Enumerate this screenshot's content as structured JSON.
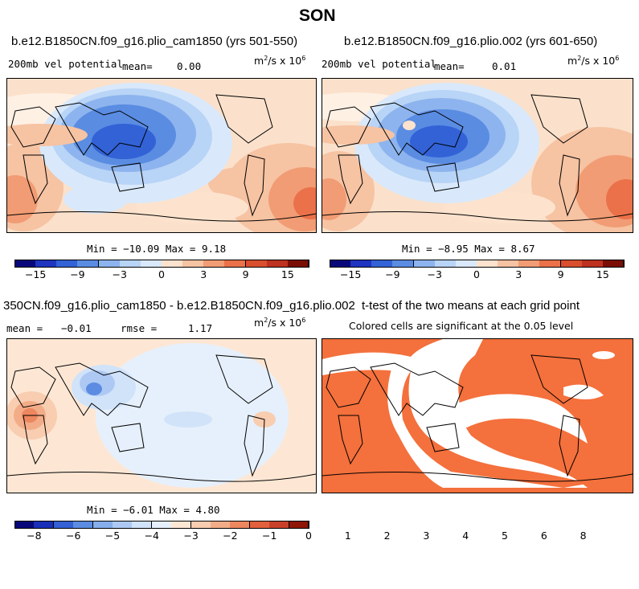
{
  "figure_title": "SON",
  "chart_data": [
    {
      "type": "heatmap",
      "panel": "top-left",
      "title": "b.e12.B1850CN.f09_g16.plio_cam1850 (yrs 501-550)",
      "variable": "200mb vel potential",
      "mean_label": "mean=",
      "mean_value": "0.00",
      "units": "m",
      "units_sup": "2",
      "units_rest": "/s x 10",
      "units_exp": "6",
      "min_max_text": "Min = −10.09 Max =   9.18",
      "colorbar_ticks": [
        "−15",
        "−9",
        "−3",
        "0",
        "3",
        "9",
        "15"
      ]
    },
    {
      "type": "heatmap",
      "panel": "top-right",
      "title": "b.e12.B1850CN.f09_g16.plio.002 (yrs 601-650)",
      "variable": "200mb vel potential",
      "mean_label": "mean=",
      "mean_value": "0.01",
      "units": "m",
      "units_sup": "2",
      "units_rest": "/s x 10",
      "units_exp": "6",
      "min_max_text": "Min =  −8.95 Max =   8.67",
      "colorbar_ticks": [
        "−15",
        "−9",
        "−3",
        "0",
        "3",
        "9",
        "15"
      ]
    },
    {
      "type": "heatmap",
      "panel": "bottom-left",
      "title": "350CN.f09_g16.plio_cam1850 - b.e12.B1850CN.f09_g16.plio.002",
      "mean_label": "mean =",
      "mean_value": "−0.01",
      "rmse_label": "rmse =",
      "rmse_value": "1.17",
      "units": "m",
      "units_sup": "2",
      "units_rest": "/s x 10",
      "units_exp": "6",
      "min_max_text": "Min =  −6.01 Max =   4.80",
      "colorbar_ticks": [
        "−8",
        "−6",
        "−5",
        "−4",
        "−3",
        "−2",
        "−1",
        "0",
        "1",
        "2",
        "3",
        "4",
        "5",
        "6",
        "8"
      ]
    },
    {
      "type": "heatmap",
      "panel": "bottom-right",
      "title": "t-test of the two means at each grid point",
      "subtitle": "Colored cells are significant at the 0.05 level"
    }
  ],
  "colors": {
    "ocean_bg": "#fbe1cb",
    "signif": "#f4703c",
    "colorbar_main": [
      "#08087a",
      "#1f35c0",
      "#3262d6",
      "#5a8ce2",
      "#8db4ee",
      "#b8d4f6",
      "#d9e9fb",
      "#fde3ce",
      "#f6c3a3",
      "#f19c74",
      "#ea7149",
      "#d94e2e",
      "#bd3220",
      "#7a0e05"
    ],
    "colorbar_diff": [
      "#08087a",
      "#1a2fb8",
      "#3460d4",
      "#5c8ce2",
      "#86aeec",
      "#adc9f3",
      "#d1e3f9",
      "#e6f0fc",
      "#fde7d4",
      "#f8cdb0",
      "#f3ac88",
      "#ed875f",
      "#e2613d",
      "#c9402a",
      "#8e1606"
    ]
  }
}
